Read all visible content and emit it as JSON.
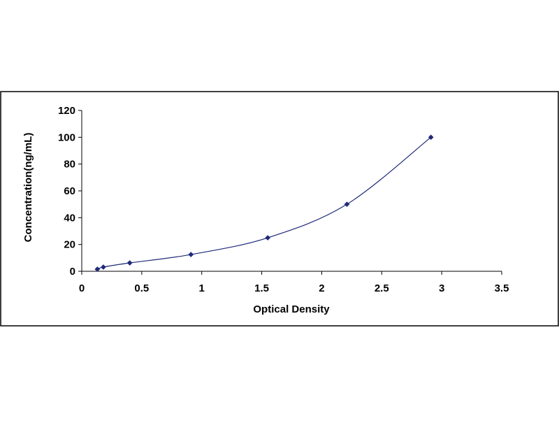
{
  "chart_data": {
    "type": "scatter",
    "title": "",
    "xlabel": "Optical Density",
    "ylabel": "Concentration(ng/mL)",
    "xlim": [
      0,
      3.5
    ],
    "ylim": [
      0,
      120
    ],
    "x_ticks": [
      0,
      0.5,
      1,
      1.5,
      2,
      2.5,
      3,
      3.5
    ],
    "y_ticks": [
      0,
      20,
      40,
      60,
      80,
      100,
      120
    ],
    "x_tick_labels": [
      "0",
      "0.5",
      "1",
      "1.5",
      "2",
      "2.5",
      "3",
      "3.5"
    ],
    "y_tick_labels": [
      "0",
      "20",
      "40",
      "60",
      "80",
      "100",
      "120"
    ],
    "grid": false,
    "legend": "none",
    "trendline": "smooth curve through points",
    "series": [
      {
        "x": [
          0.13,
          0.18,
          0.4,
          0.91,
          1.55,
          2.21,
          2.91
        ],
        "y": [
          1.56,
          3.12,
          6.25,
          12.5,
          25,
          50,
          100
        ],
        "color": "#1f2a78"
      }
    ]
  }
}
